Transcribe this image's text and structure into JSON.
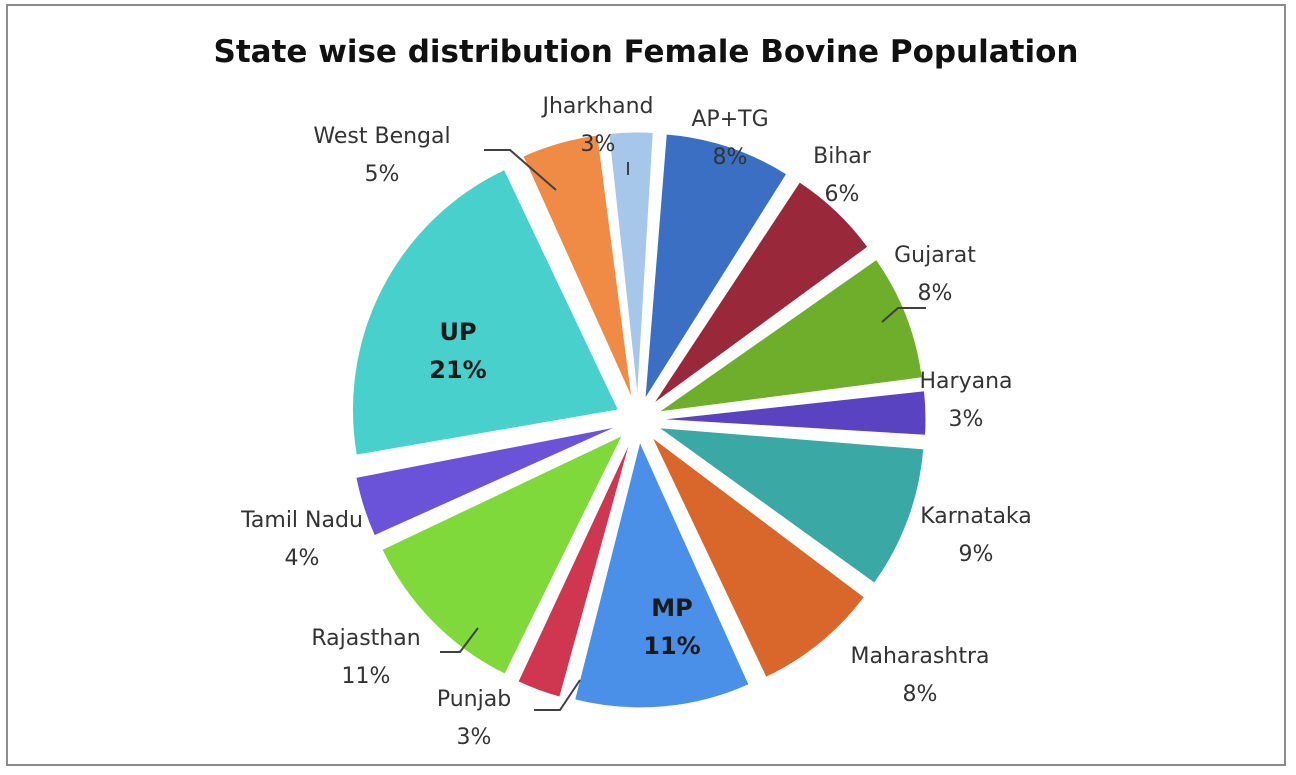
{
  "chart_data": {
    "type": "pie",
    "title": "State wise distribution Female Bovine Population",
    "slices": [
      {
        "name": "AP+TG",
        "value": 8,
        "label": "8%",
        "color": "#3a6fc4"
      },
      {
        "name": "Bihar",
        "value": 6,
        "label": "6%",
        "color": "#98283a"
      },
      {
        "name": "Gujarat",
        "value": 8,
        "label": "8%",
        "color": "#6fae2b"
      },
      {
        "name": "Haryana",
        "value": 3,
        "label": "3%",
        "color": "#5a43c0"
      },
      {
        "name": "Karnataka",
        "value": 9,
        "label": "9%",
        "color": "#3aa8a4"
      },
      {
        "name": "Maharashtra",
        "value": 8,
        "label": "8%",
        "color": "#d9662a"
      },
      {
        "name": "MP",
        "value": 11,
        "label": "11%",
        "color": "#4a8fe8"
      },
      {
        "name": "Punjab",
        "value": 3,
        "label": "3%",
        "color": "#cf3750"
      },
      {
        "name": "Rajasthan",
        "value": 11,
        "label": "11%",
        "color": "#7fd93a"
      },
      {
        "name": "Tamil Nadu",
        "value": 4,
        "label": "4%",
        "color": "#6a53d8"
      },
      {
        "name": "UP",
        "value": 21,
        "label": "21%",
        "color": "#47d0cc"
      },
      {
        "name": "West Bengal",
        "value": 5,
        "label": "5%",
        "color": "#f08b45"
      },
      {
        "name": "Jharkhand",
        "value": 3,
        "label": "3%",
        "color": "#a6c6ea"
      }
    ],
    "legend": "none"
  }
}
